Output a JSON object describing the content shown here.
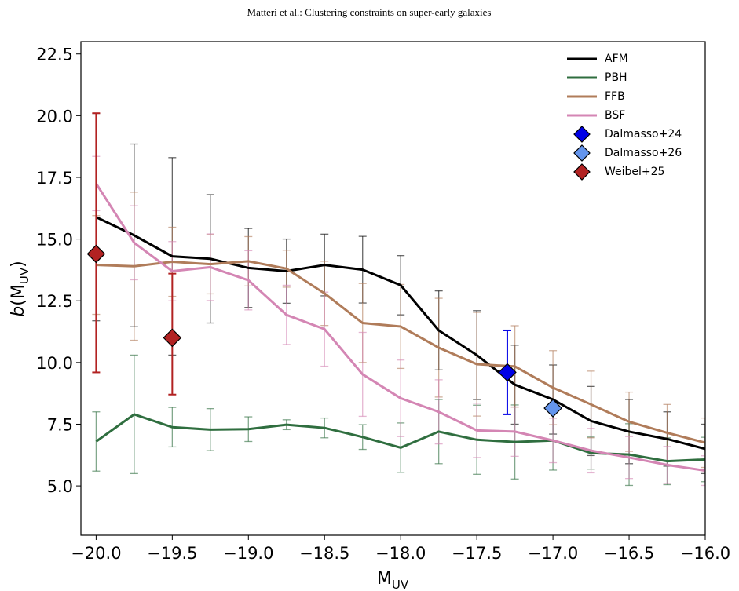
{
  "header": "Matteri et al.: Clustering constraints on super-early galaxies",
  "chart_data": {
    "type": "line",
    "xlabel": [
      "M",
      "UV"
    ],
    "ylabel": [
      "b",
      "(M",
      "UV",
      ")"
    ],
    "xlim": [
      -20.1,
      -16.0
    ],
    "ylim": [
      3.0,
      23.0
    ],
    "xticks": [
      {
        "value": -20,
        "label": "−20.0"
      },
      {
        "value": -19.5,
        "label": "−19.5"
      },
      {
        "value": -19,
        "label": "−19.0"
      },
      {
        "value": -18.5,
        "label": "−18.5"
      },
      {
        "value": -18,
        "label": "−18.0"
      },
      {
        "value": -17.5,
        "label": "−17.5"
      },
      {
        "value": -17,
        "label": "−17.0"
      },
      {
        "value": -16.5,
        "label": "−16.5"
      },
      {
        "value": -16,
        "label": "−16.0"
      }
    ],
    "yticks": [
      {
        "value": 5,
        "label": "5.0"
      },
      7.5,
      {
        "value": 10,
        "label": "10.0"
      },
      12.5,
      {
        "value": 15,
        "label": "15.0"
      },
      17.5,
      {
        "value": 20,
        "label": "20.0"
      },
      22.5
    ],
    "legend": "upper right",
    "x": [
      -20,
      -19.75,
      -19.5,
      -19.25,
      -19,
      -18.75,
      -18.5,
      -18.25,
      -18,
      -17.75,
      -17.5,
      -17.25,
      -17,
      -16.75,
      -16.5,
      -16.25,
      -16
    ],
    "series": [
      {
        "name": "AFM",
        "color": "#000000",
        "marker": "line",
        "values": [
          15.89,
          15.15,
          14.3,
          14.2,
          13.83,
          13.7,
          13.95,
          13.76,
          13.13,
          11.3,
          10.3,
          9.1,
          8.5,
          7.63,
          7.2,
          6.9,
          6.5
        ],
        "errors": [
          4.2,
          3.7,
          4.0,
          2.6,
          1.6,
          1.3,
          1.25,
          1.35,
          1.2,
          1.6,
          1.8,
          1.6,
          1.4,
          1.4,
          1.3,
          1.1,
          1.0
        ]
      },
      {
        "name": "PBH",
        "color": "#2f6e3f",
        "marker": "line",
        "values": [
          6.8,
          7.9,
          7.38,
          7.28,
          7.3,
          7.48,
          7.35,
          6.98,
          6.55,
          7.2,
          6.87,
          6.78,
          6.84,
          6.33,
          6.27,
          6.0,
          6.07
        ],
        "errors": [
          1.2,
          2.4,
          0.8,
          0.85,
          0.5,
          0.2,
          0.4,
          0.5,
          1.0,
          1.3,
          1.4,
          1.5,
          1.2,
          0.65,
          1.25,
          0.95,
          0.9
        ]
      },
      {
        "name": "FFB",
        "color": "#b07c5a",
        "marker": "line",
        "values": [
          13.95,
          13.9,
          14.08,
          13.98,
          14.1,
          13.8,
          12.8,
          11.6,
          11.46,
          10.6,
          9.93,
          9.84,
          8.98,
          8.3,
          7.6,
          7.15,
          6.75
        ],
        "errors": [
          2.0,
          3.0,
          1.4,
          1.2,
          1.0,
          0.75,
          1.3,
          1.6,
          1.7,
          2.0,
          2.1,
          1.65,
          1.5,
          1.35,
          1.2,
          1.15,
          1.0
        ]
      },
      {
        "name": "BSF",
        "color": "#d486b4",
        "marker": "line",
        "values": [
          17.25,
          14.85,
          13.7,
          13.86,
          13.33,
          11.93,
          11.35,
          9.52,
          8.55,
          8.0,
          7.25,
          7.2,
          6.84,
          6.43,
          6.15,
          5.85,
          5.62
        ],
        "errors": [
          1.1,
          1.5,
          1.2,
          1.35,
          1.2,
          1.2,
          1.5,
          1.7,
          1.55,
          1.3,
          1.1,
          1.0,
          0.9,
          0.9,
          0.85,
          0.75,
          0.6
        ]
      },
      {
        "name": "Dalmasso+24",
        "color": "#0000e6",
        "marker": "diamond",
        "x": [
          -17.3
        ],
        "values": [
          9.6
        ],
        "errors": [
          1.7
        ]
      },
      {
        "name": "Dalmasso+26",
        "color": "#6495ed",
        "marker": "diamond",
        "x": [
          -17.0
        ],
        "values": [
          8.15
        ]
      },
      {
        "name": "Weibel+25",
        "color": "#b22222",
        "marker": "diamond",
        "x": [
          -20.0,
          -19.5
        ],
        "values": [
          14.4,
          11.0
        ],
        "errors_low": [
          4.8,
          2.3
        ],
        "errors_high": [
          5.7,
          2.6
        ]
      }
    ]
  }
}
